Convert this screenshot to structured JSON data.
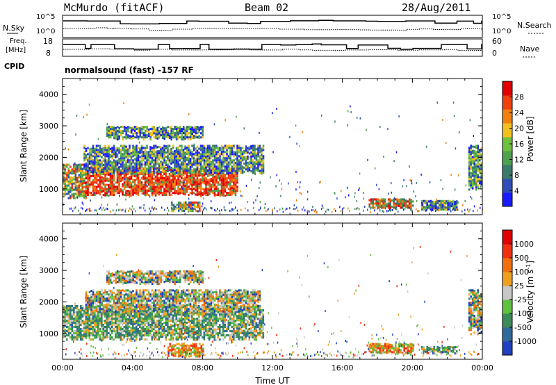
{
  "header": {
    "station": "McMurdo (fitACF)",
    "beam": "Beam 02",
    "date": "28/Aug/2011"
  },
  "strips": {
    "nsky_label": "N.Sky",
    "nsky_ticks": [
      "10^5",
      "10^0"
    ],
    "nsearch_label": "N.Search",
    "nsearch_ticks": [
      "10^5",
      "10^0"
    ],
    "freq_label_1": "Freq.",
    "freq_label_2": "[MHz]",
    "freq_ticks": [
      "18",
      "8"
    ],
    "nave_label": "Nave",
    "nave_ticks": [
      "60",
      "0"
    ],
    "cpid_label": "CPID",
    "cpid_text": "normalsound (fast) -157 RF"
  },
  "chart_data": [
    {
      "type": "heatmap",
      "name": "power-panel",
      "ylabel": "Slant Range [km]",
      "xlabel": "",
      "y_ticks": [
        "4000",
        "3000",
        "2000",
        "1000"
      ],
      "y_tick_values": [
        4000,
        3000,
        2000,
        1000
      ],
      "ylim": [
        180,
        4500
      ],
      "xlim_hours": [
        0,
        24
      ],
      "colorbar": {
        "label": "Power [dB]",
        "ticks": [
          "28",
          "24",
          "20",
          "16",
          "12",
          "8",
          "4"
        ],
        "tick_values": [
          28,
          24,
          20,
          16,
          12,
          8,
          4
        ],
        "range": [
          0,
          32
        ],
        "colors": [
          "#1a1aff",
          "#2f4fb8",
          "#3a7a6a",
          "#4fa04f",
          "#70c040",
          "#f0c020",
          "#f08010",
          "#f04010",
          "#e00000"
        ]
      },
      "regions": [
        {
          "t0": 0.0,
          "t1": 1.3,
          "r0": 700,
          "r1": 1800,
          "level": "mid"
        },
        {
          "t0": 1.3,
          "t1": 10.0,
          "r0": 800,
          "r1": 1700,
          "level": "high"
        },
        {
          "t0": 1.2,
          "t1": 11.5,
          "r0": 1500,
          "r1": 2400,
          "level": "low"
        },
        {
          "t0": 2.5,
          "t1": 8.0,
          "r0": 2600,
          "r1": 3000,
          "level": "low"
        },
        {
          "t0": 6.2,
          "t1": 7.8,
          "r0": 300,
          "r1": 600,
          "level": "mid"
        },
        {
          "t0": 17.5,
          "t1": 20.0,
          "r0": 400,
          "r1": 700,
          "level": "midhigh"
        },
        {
          "t0": 20.5,
          "t1": 22.5,
          "r0": 350,
          "r1": 650,
          "level": "low"
        },
        {
          "t0": 23.2,
          "t1": 23.9,
          "r0": 1000,
          "r1": 2400,
          "level": "low"
        }
      ]
    },
    {
      "type": "heatmap",
      "name": "velocity-panel",
      "ylabel": "Slant Range [km]",
      "xlabel": "Time UT",
      "y_ticks": [
        "4000",
        "3000",
        "2000",
        "1000"
      ],
      "y_tick_values": [
        4000,
        3000,
        2000,
        1000
      ],
      "ylim": [
        180,
        4500
      ],
      "x_ticks": [
        "00:00",
        "04:00",
        "08:00",
        "12:00",
        "16:00",
        "20:00",
        "00:00"
      ],
      "x_tick_hours": [
        0,
        4,
        8,
        12,
        16,
        20,
        24
      ],
      "xlim_hours": [
        0,
        24
      ],
      "colorbar": {
        "label": "Velocity [m s^-1]",
        "ticks": [
          "1000",
          "500",
          "100",
          "25",
          "-25",
          "-100",
          "-500",
          "-1000"
        ],
        "colors": [
          "#2040c0",
          "#2f6a9a",
          "#3a8a5a",
          "#60c040",
          "#c8c8c8",
          "#f0a020",
          "#f07010",
          "#f03010",
          "#e00000"
        ]
      },
      "regions": [
        {
          "t0": 0.0,
          "t1": 11.5,
          "r0": 800,
          "r1": 1900,
          "level": "green"
        },
        {
          "t0": 1.3,
          "t1": 11.3,
          "r0": 1700,
          "r1": 2400,
          "level": "mixed"
        },
        {
          "t0": 2.5,
          "t1": 8.0,
          "r0": 2600,
          "r1": 3000,
          "level": "mixed"
        },
        {
          "t0": 6.0,
          "t1": 8.0,
          "r0": 300,
          "r1": 700,
          "level": "orange"
        },
        {
          "t0": 17.5,
          "t1": 20.0,
          "r0": 400,
          "r1": 700,
          "level": "orange"
        },
        {
          "t0": 20.5,
          "t1": 22.5,
          "r0": 400,
          "r1": 600,
          "level": "green"
        },
        {
          "t0": 23.2,
          "t1": 23.9,
          "r0": 1000,
          "r1": 2400,
          "level": "mixed"
        }
      ]
    }
  ]
}
